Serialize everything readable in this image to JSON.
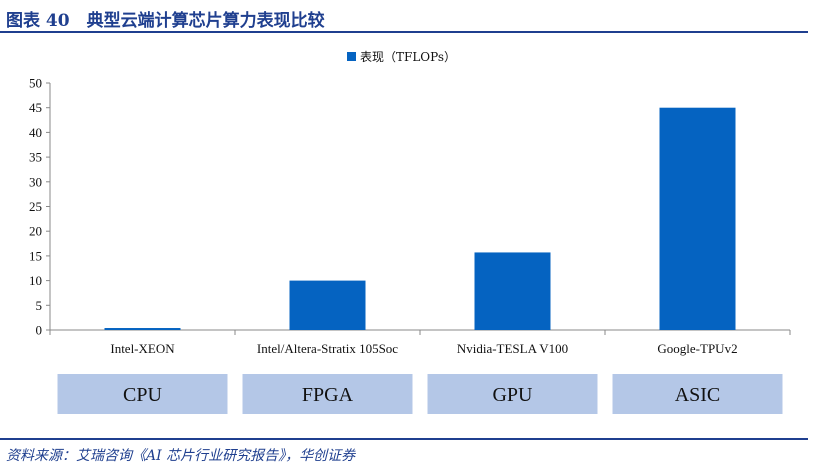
{
  "header": {
    "title": "图表 40　典型云端计算芯片算力表现比较"
  },
  "footer": {
    "source": "资料来源：艾瑞咨询《AI 芯片行业研究报告》，华创证券"
  },
  "colors": {
    "bar": "#0563c1",
    "group_box": "#b4c7e7",
    "title": "#1f3f8f"
  },
  "chart_data": {
    "type": "bar",
    "title": "",
    "xlabel": "",
    "ylabel": "",
    "ylim": [
      0,
      50
    ],
    "yticks": [
      0,
      5,
      10,
      15,
      20,
      25,
      30,
      35,
      40,
      45,
      50
    ],
    "grid": false,
    "legend_position": "top-center",
    "categories": [
      "Intel-XEON",
      "Intel/Altera-Stratix 105Soc",
      "Nvidia-TESLA V100",
      "Google-TPUv2"
    ],
    "series": [
      {
        "name": "表现（TFLOPs）",
        "values": [
          0.4,
          10,
          15.7,
          45
        ]
      }
    ],
    "groups": [
      "CPU",
      "FPGA",
      "GPU",
      "ASIC"
    ]
  }
}
